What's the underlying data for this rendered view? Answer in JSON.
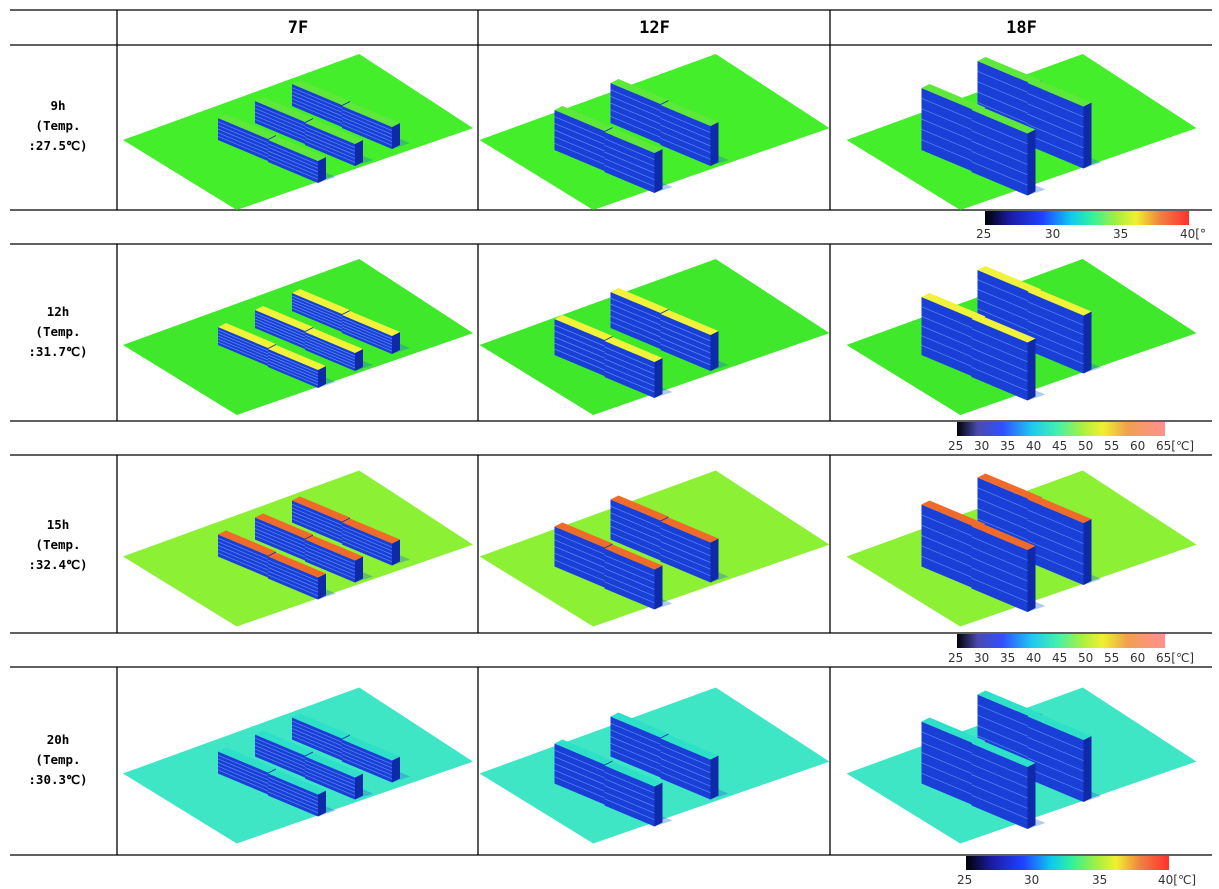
{
  "columns": [
    "7F",
    "12F",
    "18F"
  ],
  "rows": [
    {
      "hour": "9h",
      "temp_line1": "(Temp.",
      "temp_line2": ":27.5℃)",
      "facade": "blue",
      "roof": "green",
      "ground": "#44ee2a",
      "legend_ticks": [
        "25",
        "30",
        "35",
        "40[°"
      ]
    },
    {
      "hour": "12h",
      "temp_line1": "(Temp.",
      "temp_line2": ":31.7℃)",
      "facade": "blue",
      "roof": "yellow",
      "ground": "#3fe82a",
      "legend_ticks": [
        "25",
        "30",
        "35",
        "40",
        "45",
        "50",
        "55",
        "60",
        "65[℃]"
      ]
    },
    {
      "hour": "15h",
      "temp_line1": "(Temp.",
      "temp_line2": ":32.4℃)",
      "facade": "blue",
      "roof": "orange",
      "ground": "#8cf034",
      "legend_ticks": [
        "25",
        "30",
        "35",
        "40",
        "45",
        "50",
        "55",
        "60",
        "65[℃]"
      ]
    },
    {
      "hour": "20h",
      "temp_line1": "(Temp.",
      "temp_line2": ":30.3℃)",
      "facade": "blue",
      "roof": "cyan",
      "ground": "#3ee6c6",
      "legend_ticks": [
        "25",
        "30",
        "35",
        "40[℃]"
      ]
    }
  ],
  "colors": {
    "facade_blue": "#1a3fd6",
    "facade_side": "#0e2aa8",
    "roof_green": "#5ee83a",
    "roof_yellow": "#f2f23a",
    "roof_orange": "#f06a2a",
    "roof_cyan": "#2ee0c8"
  }
}
